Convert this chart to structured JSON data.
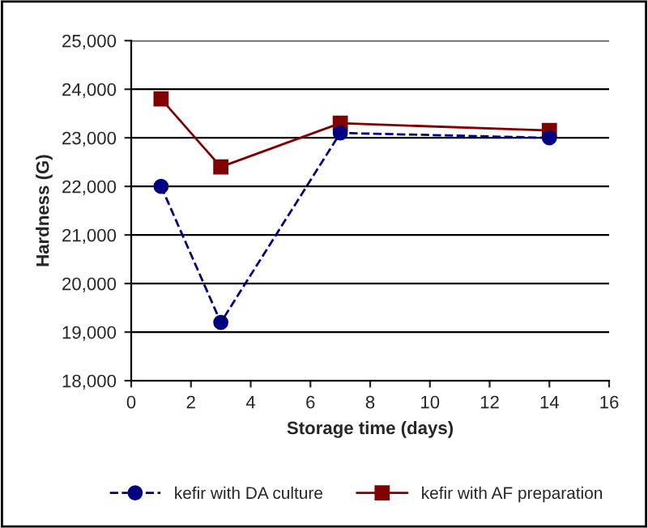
{
  "chart_data": {
    "type": "line",
    "xlabel": "Storage time (days)",
    "ylabel": "Hardness (G)",
    "x": [
      1,
      3,
      7,
      14
    ],
    "series": [
      {
        "name": "kefir with DA culture",
        "color": "#000080",
        "values": [
          22000,
          19200,
          23100,
          23000
        ],
        "marker": "circle",
        "line_style": "dashed"
      },
      {
        "name": "kefir with AF preparation",
        "color": "#800000",
        "values": [
          23800,
          22400,
          23300,
          23150
        ],
        "marker": "square",
        "line_style": "solid"
      }
    ],
    "xlim": [
      0,
      16
    ],
    "xticks": [
      0,
      2,
      4,
      6,
      8,
      10,
      12,
      14,
      16
    ],
    "ylim": [
      18000,
      25000
    ],
    "yticks": [
      {
        "value": 18000,
        "label": "18,000"
      },
      {
        "value": 19000,
        "label": "19,000"
      },
      {
        "value": 20000,
        "label": "20,000"
      },
      {
        "value": 21000,
        "label": "21,000"
      },
      {
        "value": 22000,
        "label": "22,000"
      },
      {
        "value": 23000,
        "label": "23,000"
      },
      {
        "value": 24000,
        "label": "24,000"
      },
      {
        "value": 25000,
        "label": "25,000"
      }
    ],
    "grid": "y",
    "legend": "bottom"
  }
}
